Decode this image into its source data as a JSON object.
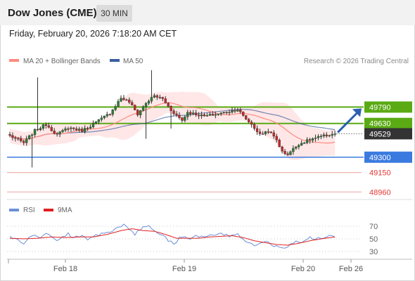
{
  "header": {
    "title": "Dow Jones (CME)",
    "timeframe": "30 MIN",
    "datetime": "Friday, February 20, 2026 7:18:20 AM CET"
  },
  "legend": {
    "ma20": "MA 20 + Bollinger Bands",
    "ma50": "MA 50",
    "copyright": "Research © 2026 Trading Central",
    "rsi": "RSI",
    "rsi_ma": "9MA"
  },
  "colors": {
    "up": "#2e7d32",
    "down": "#c62828",
    "ma20": "#ff8a80",
    "ma50": "#3b5c9e",
    "bollinger_fill": "#ffe3e3",
    "resistance": "#5aaa14",
    "support": "#3b7be0",
    "target": "#e53935",
    "arrow": "#2b5fb0",
    "price_box": "#333333",
    "rsi_line": "#6b8fd8",
    "rsi_ma": "#e02020"
  },
  "chart_data": [
    {
      "type": "candlestick",
      "title": "Dow Jones (CME)",
      "timeframe": "30 MIN",
      "ylim": [
        48900,
        50150
      ],
      "x_tick_labels": [
        "Feb 18",
        "Feb 19",
        "Feb 20",
        "Feb 26"
      ],
      "last_price": 49529,
      "levels": [
        {
          "value": 49790,
          "label": "49790",
          "kind": "resistance",
          "style": "box-green"
        },
        {
          "value": 49630,
          "label": "49630",
          "kind": "resistance",
          "style": "box-green"
        },
        {
          "value": 49300,
          "label": "49300",
          "kind": "support",
          "style": "box-blue"
        },
        {
          "value": 49150,
          "label": "49150",
          "kind": "target",
          "style": "text-red"
        },
        {
          "value": 48960,
          "label": "48960",
          "kind": "target",
          "style": "text-red"
        }
      ],
      "projection": {
        "from": 49529,
        "to": 49790,
        "direction": "up"
      },
      "close_path": [
        [
          0,
          49510
        ],
        [
          5,
          49440
        ],
        [
          9,
          49560
        ],
        [
          13,
          49620
        ],
        [
          17,
          49520
        ],
        [
          21,
          49590
        ],
        [
          26,
          49560
        ],
        [
          31,
          49640
        ],
        [
          36,
          49730
        ],
        [
          40,
          49880
        ],
        [
          43,
          49840
        ],
        [
          46,
          49720
        ],
        [
          49,
          49830
        ],
        [
          52,
          49900
        ],
        [
          55,
          49870
        ],
        [
          58,
          49760
        ],
        [
          62,
          49660
        ],
        [
          64,
          49740
        ],
        [
          67,
          49720
        ],
        [
          70,
          49700
        ],
        [
          74,
          49720
        ],
        [
          78,
          49740
        ],
        [
          82,
          49770
        ],
        [
          84,
          49700
        ],
        [
          87,
          49620
        ],
        [
          90,
          49520
        ],
        [
          93,
          49560
        ],
        [
          96,
          49470
        ],
        [
          98,
          49350
        ],
        [
          100,
          49330
        ],
        [
          102,
          49380
        ],
        [
          104,
          49430
        ],
        [
          106,
          49450
        ],
        [
          109,
          49480
        ],
        [
          112,
          49500
        ],
        [
          115,
          49520
        ],
        [
          117,
          49529
        ]
      ]
    },
    {
      "type": "line",
      "title": "RSI",
      "series_names": [
        "RSI",
        "9MA"
      ],
      "ylim": [
        20,
        80
      ],
      "y_tick_labels": [
        "70",
        "50",
        "30"
      ],
      "rsi_path": [
        [
          0,
          54
        ],
        [
          3,
          47
        ],
        [
          5,
          43
        ],
        [
          7,
          52
        ],
        [
          9,
          57
        ],
        [
          11,
          49
        ],
        [
          13,
          60
        ],
        [
          15,
          55
        ],
        [
          17,
          46
        ],
        [
          19,
          53
        ],
        [
          21,
          58
        ],
        [
          23,
          50
        ],
        [
          25,
          55
        ],
        [
          28,
          49
        ],
        [
          31,
          56
        ],
        [
          34,
          60
        ],
        [
          37,
          63
        ],
        [
          39,
          69
        ],
        [
          41,
          71
        ],
        [
          43,
          66
        ],
        [
          45,
          58
        ],
        [
          47,
          66
        ],
        [
          49,
          70
        ],
        [
          51,
          68
        ],
        [
          53,
          60
        ],
        [
          55,
          57
        ],
        [
          57,
          48
        ],
        [
          59,
          42
        ],
        [
          61,
          51
        ],
        [
          63,
          55
        ],
        [
          65,
          50
        ],
        [
          67,
          54
        ],
        [
          70,
          52
        ],
        [
          73,
          56
        ],
        [
          76,
          57
        ],
        [
          79,
          54
        ],
        [
          82,
          59
        ],
        [
          84,
          50
        ],
        [
          86,
          44
        ],
        [
          88,
          41
        ],
        [
          90,
          45
        ],
        [
          92,
          46
        ],
        [
          94,
          41
        ],
        [
          96,
          38
        ],
        [
          98,
          35
        ],
        [
          100,
          39
        ],
        [
          102,
          45
        ],
        [
          104,
          44
        ],
        [
          106,
          48
        ],
        [
          108,
          52
        ],
        [
          110,
          50
        ],
        [
          112,
          53
        ],
        [
          114,
          53
        ],
        [
          116,
          55
        ],
        [
          117,
          54
        ]
      ],
      "ma9_path": [
        [
          0,
          51
        ],
        [
          5,
          50
        ],
        [
          10,
          51
        ],
        [
          15,
          53
        ],
        [
          20,
          52
        ],
        [
          25,
          53
        ],
        [
          30,
          53
        ],
        [
          35,
          57
        ],
        [
          40,
          63
        ],
        [
          44,
          66
        ],
        [
          48,
          63
        ],
        [
          52,
          62
        ],
        [
          56,
          57
        ],
        [
          60,
          51
        ],
        [
          64,
          51
        ],
        [
          68,
          51
        ],
        [
          72,
          53
        ],
        [
          76,
          54
        ],
        [
          80,
          55
        ],
        [
          84,
          52
        ],
        [
          88,
          47
        ],
        [
          92,
          44
        ],
        [
          96,
          41
        ],
        [
          100,
          40
        ],
        [
          104,
          43
        ],
        [
          108,
          47
        ],
        [
          112,
          50
        ],
        [
          117,
          53
        ]
      ]
    }
  ]
}
